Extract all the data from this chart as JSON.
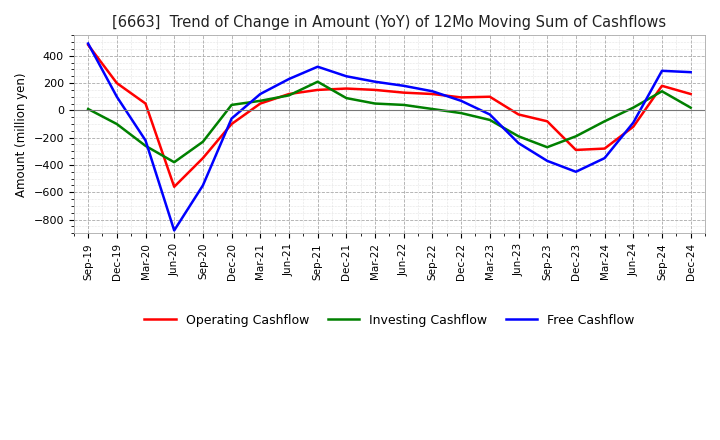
{
  "title": "[6663]  Trend of Change in Amount (YoY) of 12Mo Moving Sum of Cashflows",
  "ylabel": "Amount (million yen)",
  "ylim": [
    -900,
    550
  ],
  "yticks": [
    -800,
    -600,
    -400,
    -200,
    0,
    200,
    400
  ],
  "x_labels": [
    "Sep-19",
    "Dec-19",
    "Mar-20",
    "Jun-20",
    "Sep-20",
    "Dec-20",
    "Mar-21",
    "Jun-21",
    "Sep-21",
    "Dec-21",
    "Mar-22",
    "Jun-22",
    "Sep-22",
    "Dec-22",
    "Mar-23",
    "Jun-23",
    "Sep-23",
    "Dec-23",
    "Mar-24",
    "Jun-24",
    "Sep-24",
    "Dec-24"
  ],
  "operating": [
    480,
    200,
    50,
    -560,
    -350,
    -100,
    50,
    120,
    150,
    160,
    150,
    130,
    120,
    95,
    100,
    -30,
    -80,
    -290,
    -280,
    -120,
    180,
    120
  ],
  "investing": [
    10,
    -100,
    -260,
    -380,
    -230,
    40,
    70,
    110,
    210,
    90,
    50,
    40,
    10,
    -20,
    -70,
    -190,
    -270,
    -190,
    -80,
    20,
    140,
    20
  ],
  "free": [
    490,
    100,
    -220,
    -880,
    -550,
    -60,
    120,
    230,
    320,
    250,
    210,
    180,
    140,
    70,
    -30,
    -240,
    -370,
    -450,
    -350,
    -90,
    290,
    280
  ],
  "operating_color": "#ff0000",
  "investing_color": "#008000",
  "free_color": "#0000ff",
  "bg_color": "#ffffff",
  "plot_bg_color": "#ffffff",
  "grid_color": "#aaaaaa",
  "legend_labels": [
    "Operating Cashflow",
    "Investing Cashflow",
    "Free Cashflow"
  ]
}
